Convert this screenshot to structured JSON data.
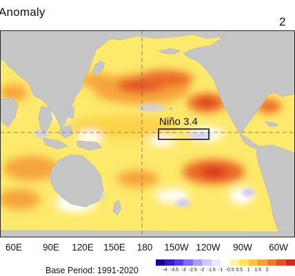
{
  "header": {
    "title": "Anomaly",
    "title_right": "2"
  },
  "map": {
    "region_label": "Niño 3.4",
    "longitude_labels": [
      "60E",
      "90E",
      "120E",
      "150E",
      "180",
      "150W",
      "120W",
      "90W",
      "60W"
    ],
    "colors": {
      "land": "#c6c6c6",
      "ocean_base": "#fde96a",
      "warm_1": "#fbd34a",
      "warm_2": "#f6a53a",
      "warm_3": "#ec6a28",
      "warm_4": "#d8331f",
      "near_zero": "#ffffff",
      "cool_1": "#c9c9ff",
      "cool_2": "#5c4fe0",
      "grid": "#666666"
    }
  },
  "legend": {
    "base_period": "Base Period: 1991-2020",
    "ticks": [
      "-4",
      "-3.5",
      "-3",
      "-2.5",
      "-2",
      "-1.5",
      "-1",
      "-0.5",
      "0.5",
      "1",
      "1.5",
      "2"
    ],
    "colors": [
      "#1a0096",
      "#2f1ccf",
      "#4d3bf0",
      "#7b6cff",
      "#a69cff",
      "#cdc6ff",
      "#e9e6ff",
      "#ffffff",
      "#fff3a3",
      "#fde35a",
      "#fbc23f",
      "#f6a03a",
      "#ee7a2e",
      "#e5522a",
      "#cf2b20"
    ]
  }
}
